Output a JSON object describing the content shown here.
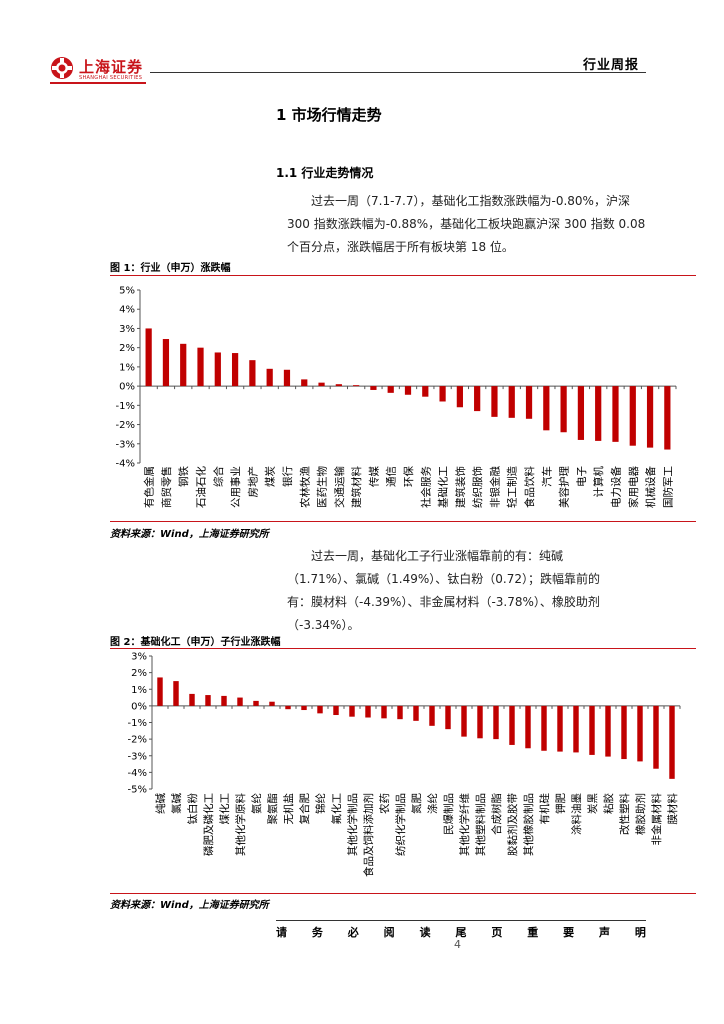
{
  "header": {
    "logo_name": "上海证券",
    "logo_sub": "SHANGHAI SECURITIES",
    "report_type": "行业周报"
  },
  "section": {
    "title": "1  市场行情走势",
    "subtitle": "1.1  行业走势情况"
  },
  "paragraph1": {
    "line1": "过去一周（7.1-7.7），基础化工指数涨跌幅为-0.80%，沪深",
    "line2": "300 指数涨跌幅为-0.88%，基础化工板块跑赢沪深 300 指数 0.08",
    "line3": "个百分点，涨跌幅居于所有板块第 18 位。"
  },
  "figure1": {
    "title": "图 1：行业（申万）涨跌幅",
    "source": "资料来源：Wind，上海证券研究所"
  },
  "paragraph2": {
    "line1": "过去一周，基础化工子行业涨幅靠前的有：纯碱",
    "line2": "（1.71%）、氯碱（1.49%）、钛白粉（0.72）；跌幅靠前的",
    "line3": "有：膜材料（-4.39%）、非金属材料（-3.78%）、橡胶助剂",
    "line4": "（-3.34%）。"
  },
  "figure2": {
    "title": "图 2：基础化工（申万）子行业涨跌幅",
    "source": "资料来源：Wind，上海证券研究所"
  },
  "footer": {
    "notice": [
      "请",
      "务",
      "必",
      "阅",
      "读",
      "尾",
      "页",
      "重",
      "要",
      "声",
      "明"
    ],
    "page_number": "4"
  },
  "colors": {
    "accent": "#c8141a",
    "bar": "#c00000"
  },
  "chart_data": [
    {
      "type": "bar",
      "title": "图 1：行业（申万）涨跌幅",
      "categories": [
        "有色金属",
        "商贸零售",
        "钢铁",
        "石油石化",
        "综合",
        "公用事业",
        "房地产",
        "煤炭",
        "银行",
        "农林牧渔",
        "医药生物",
        "交通运输",
        "建筑材料",
        "传媒",
        "通信",
        "环保",
        "社会服务",
        "基础化工",
        "建筑装饰",
        "纺织服饰",
        "非银金融",
        "轻工制造",
        "食品饮料",
        "汽车",
        "美容护理",
        "电子",
        "计算机",
        "电力设备",
        "家用电器",
        "机械设备",
        "国防军工"
      ],
      "values": [
        3.0,
        2.45,
        2.2,
        2.0,
        1.75,
        1.72,
        1.35,
        0.9,
        0.85,
        0.35,
        0.18,
        0.1,
        0.05,
        -0.2,
        -0.35,
        -0.45,
        -0.55,
        -0.8,
        -1.1,
        -1.3,
        -1.6,
        -1.65,
        -1.7,
        -2.3,
        -2.4,
        -2.8,
        -2.85,
        -2.9,
        -3.1,
        -3.2,
        -3.3
      ],
      "ylim": [
        -4,
        5
      ],
      "yticks": [
        "5%",
        "4%",
        "3%",
        "2%",
        "1%",
        "0%",
        "-1%",
        "-2%",
        "-3%",
        "-4%"
      ],
      "grid": false
    },
    {
      "type": "bar",
      "title": "图 2：基础化工（申万）子行业涨跌幅",
      "categories": [
        "纯碱",
        "氯碱",
        "钛白粉",
        "磷肥及磷化工",
        "煤化工",
        "其他化学原料",
        "氨纶",
        "聚氨酯",
        "无机盐",
        "复合肥",
        "锦纶",
        "氟化工",
        "其他化学制品",
        "食品及饲料添加剂",
        "农药",
        "纺织化学制品",
        "氮肥",
        "涤纶",
        "民爆制品",
        "其他化学纤维",
        "其他塑料制品",
        "合成树脂",
        "胶黏剂及胶带",
        "其他橡胶制品",
        "有机硅",
        "钾肥",
        "涂料油墨",
        "炭黑",
        "粘胶",
        "改性塑料",
        "橡胶助剂",
        "非金属材料",
        "膜材料"
      ],
      "values": [
        1.71,
        1.49,
        0.72,
        0.65,
        0.6,
        0.5,
        0.3,
        0.25,
        -0.2,
        -0.25,
        -0.45,
        -0.55,
        -0.65,
        -0.7,
        -0.75,
        -0.8,
        -0.9,
        -1.2,
        -1.4,
        -1.85,
        -1.95,
        -2.0,
        -2.35,
        -2.55,
        -2.7,
        -2.75,
        -2.8,
        -2.95,
        -3.05,
        -3.2,
        -3.34,
        -3.78,
        -4.39
      ],
      "ylim": [
        -5,
        3
      ],
      "yticks": [
        "3%",
        "2%",
        "1%",
        "0%",
        "-1%",
        "-2%",
        "-3%",
        "-4%",
        "-5%"
      ],
      "grid": false
    }
  ]
}
